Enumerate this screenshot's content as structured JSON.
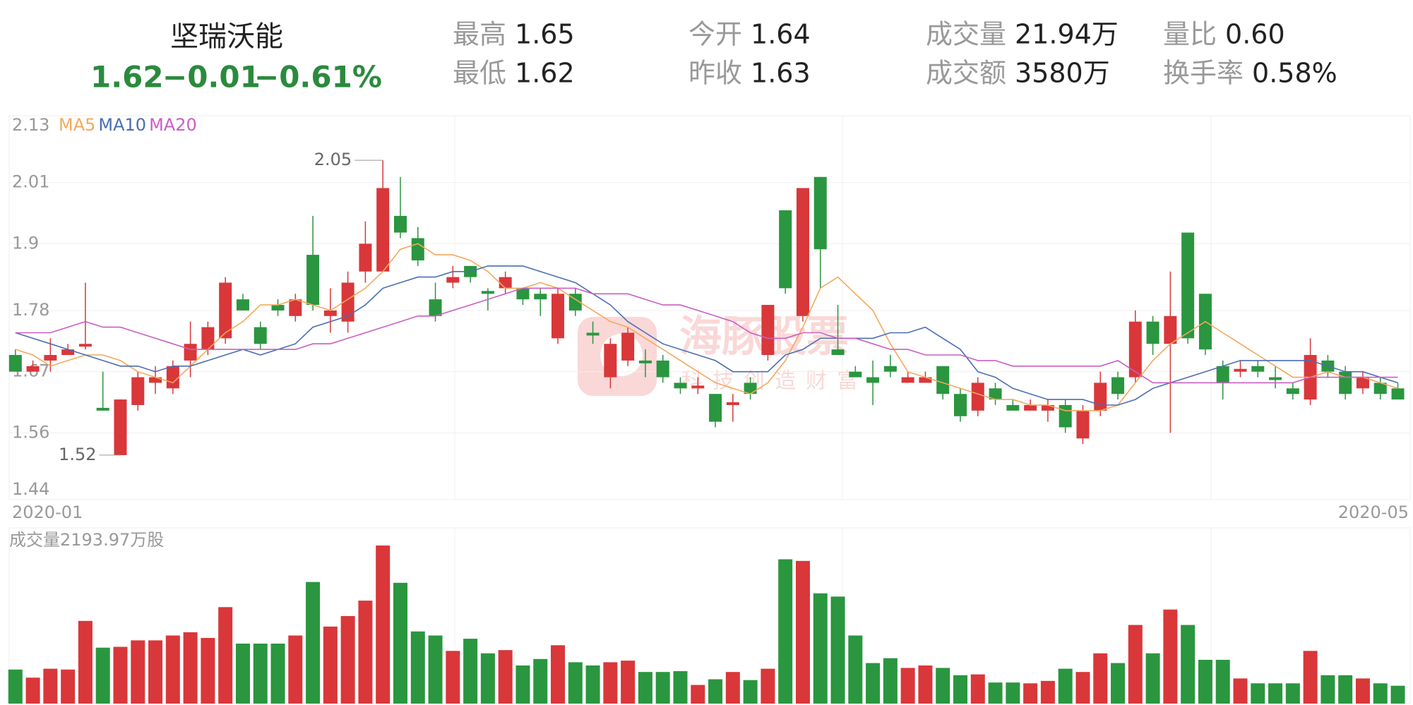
{
  "header": {
    "name": "坚瑞沃能",
    "price": "1.62",
    "change": "−0.01",
    "change_pct": "−0.61%",
    "stats": [
      {
        "label": "最高",
        "value": "1.65"
      },
      {
        "label": "最低",
        "value": "1.62"
      },
      {
        "label": "今开",
        "value": "1.64"
      },
      {
        "label": "昨收",
        "value": "1.63"
      },
      {
        "label": "成交量",
        "value": "21.94万"
      },
      {
        "label": "成交额",
        "value": "3580万"
      },
      {
        "label": "量比",
        "value": "0.60"
      },
      {
        "label": "换手率",
        "value": "0.58%"
      }
    ]
  },
  "watermark": {
    "title": "海豚股票",
    "slogan": "科技创造财富"
  },
  "chart_data": {
    "type": "candlestick",
    "categories": [
      "2020-01",
      null,
      null,
      null,
      null,
      null,
      null,
      null,
      null,
      null,
      null,
      null,
      null,
      null,
      null,
      null,
      null,
      null,
      null,
      null,
      null,
      null,
      null,
      null,
      null,
      null,
      null,
      null,
      null,
      null,
      null,
      null,
      null,
      null,
      null,
      null,
      null,
      null,
      null,
      null,
      null,
      null,
      null,
      null,
      null,
      null,
      null,
      null,
      null,
      null,
      null,
      null,
      null,
      null,
      null,
      null,
      null,
      null,
      null,
      null,
      null,
      null,
      null,
      null,
      null,
      null,
      null,
      null,
      null,
      null,
      null,
      null,
      null,
      null,
      null,
      null,
      null,
      null,
      null,
      "2020-05"
    ],
    "open": [
      1.7,
      1.67,
      1.69,
      1.7,
      1.715,
      1.605,
      1.52,
      1.61,
      1.65,
      1.64,
      1.69,
      1.71,
      1.73,
      1.8,
      1.75,
      1.79,
      1.77,
      1.88,
      1.77,
      1.76,
      1.85,
      1.85,
      1.95,
      1.91,
      1.8,
      1.83,
      1.86,
      1.815,
      1.82,
      1.82,
      1.81,
      1.73,
      1.81,
      1.74,
      1.66,
      1.69,
      1.69,
      1.69,
      1.65,
      1.64,
      1.63,
      1.61,
      1.65,
      1.7,
      1.96,
      1.77,
      2.02,
      1.71,
      1.67,
      1.66,
      1.68,
      1.65,
      1.65,
      1.68,
      1.63,
      1.6,
      1.64,
      1.61,
      1.6,
      1.6,
      1.61,
      1.55,
      1.6,
      1.66,
      1.66,
      1.76,
      1.72,
      1.92,
      1.81,
      1.68,
      1.67,
      1.68,
      1.66,
      1.64,
      1.62,
      1.69,
      1.67,
      1.64,
      1.65,
      1.64
    ],
    "high": [
      1.71,
      1.69,
      1.73,
      1.72,
      1.83,
      1.67,
      1.62,
      1.67,
      1.68,
      1.69,
      1.76,
      1.76,
      1.84,
      1.81,
      1.76,
      1.8,
      1.81,
      1.95,
      1.82,
      1.85,
      1.94,
      2.05,
      2.02,
      1.93,
      1.83,
      1.86,
      1.86,
      1.82,
      1.85,
      1.82,
      1.82,
      1.82,
      1.82,
      1.76,
      1.73,
      1.75,
      1.71,
      1.7,
      1.66,
      1.66,
      1.63,
      1.63,
      1.66,
      1.79,
      1.96,
      2.0,
      2.02,
      1.79,
      1.68,
      1.69,
      1.7,
      1.67,
      1.67,
      1.68,
      1.64,
      1.66,
      1.65,
      1.62,
      1.62,
      1.62,
      1.62,
      1.61,
      1.67,
      1.67,
      1.78,
      1.77,
      1.85,
      1.92,
      1.81,
      1.69,
      1.69,
      1.69,
      1.68,
      1.65,
      1.73,
      1.7,
      1.68,
      1.67,
      1.66,
      1.65
    ],
    "low": [
      1.67,
      1.67,
      1.67,
      1.7,
      1.71,
      1.6,
      1.52,
      1.6,
      1.63,
      1.63,
      1.66,
      1.7,
      1.72,
      1.78,
      1.71,
      1.77,
      1.76,
      1.78,
      1.74,
      1.74,
      1.83,
      1.85,
      1.91,
      1.86,
      1.76,
      1.82,
      1.83,
      1.78,
      1.81,
      1.79,
      1.77,
      1.72,
      1.77,
      1.72,
      1.64,
      1.68,
      1.66,
      1.65,
      1.63,
      1.63,
      1.57,
      1.58,
      1.62,
      1.69,
      1.81,
      1.76,
      1.82,
      1.7,
      1.66,
      1.61,
      1.66,
      1.65,
      1.65,
      1.62,
      1.58,
      1.59,
      1.61,
      1.6,
      1.6,
      1.58,
      1.56,
      1.54,
      1.59,
      1.62,
      1.65,
      1.7,
      1.56,
      1.72,
      1.7,
      1.62,
      1.66,
      1.66,
      1.64,
      1.62,
      1.61,
      1.66,
      1.62,
      1.63,
      1.62,
      1.62
    ],
    "close": [
      1.67,
      1.68,
      1.7,
      1.71,
      1.72,
      1.6,
      1.62,
      1.66,
      1.66,
      1.68,
      1.72,
      1.75,
      1.83,
      1.78,
      1.72,
      1.78,
      1.8,
      1.79,
      1.78,
      1.83,
      1.9,
      2.0,
      1.92,
      1.87,
      1.77,
      1.84,
      1.84,
      1.81,
      1.84,
      1.8,
      1.8,
      1.81,
      1.78,
      1.735,
      1.72,
      1.74,
      1.685,
      1.66,
      1.64,
      1.645,
      1.58,
      1.615,
      1.63,
      1.79,
      1.82,
      2.0,
      1.89,
      1.7,
      1.66,
      1.65,
      1.67,
      1.66,
      1.66,
      1.63,
      1.59,
      1.65,
      1.62,
      1.6,
      1.61,
      1.61,
      1.57,
      1.6,
      1.65,
      1.63,
      1.76,
      1.72,
      1.77,
      1.73,
      1.71,
      1.65,
      1.675,
      1.67,
      1.655,
      1.63,
      1.7,
      1.67,
      1.63,
      1.66,
      1.63,
      1.62
    ],
    "up_color": "#d9373a",
    "down_color": "#2a963f",
    "ylim": [
      1.44,
      2.13
    ],
    "yticks": [
      2.13,
      2.01,
      1.9,
      1.78,
      1.67,
      1.56,
      1.44
    ],
    "grid": true,
    "high_label": 2.05,
    "low_label": 1.52,
    "series": [
      {
        "name": "MA5",
        "color": "#f4a85c",
        "values": [
          1.71,
          1.7,
          1.68,
          1.69,
          1.7,
          1.7,
          1.69,
          1.67,
          1.66,
          1.65,
          1.68,
          1.71,
          1.74,
          1.76,
          1.79,
          1.79,
          1.8,
          1.79,
          1.78,
          1.8,
          1.82,
          1.85,
          1.89,
          1.9,
          1.88,
          1.88,
          1.87,
          1.85,
          1.82,
          1.82,
          1.83,
          1.82,
          1.8,
          1.78,
          1.76,
          1.75,
          1.73,
          1.71,
          1.69,
          1.67,
          1.65,
          1.64,
          1.63,
          1.65,
          1.69,
          1.75,
          1.82,
          1.84,
          1.81,
          1.78,
          1.72,
          1.67,
          1.66,
          1.65,
          1.64,
          1.63,
          1.62,
          1.62,
          1.61,
          1.61,
          1.6,
          1.6,
          1.6,
          1.61,
          1.65,
          1.69,
          1.72,
          1.74,
          1.76,
          1.74,
          1.72,
          1.7,
          1.68,
          1.66,
          1.66,
          1.67,
          1.66,
          1.66,
          1.65,
          1.64
        ]
      },
      {
        "name": "MA10",
        "color": "#4a6db3",
        "values": [
          1.74,
          1.73,
          1.72,
          1.71,
          1.7,
          1.69,
          1.68,
          1.68,
          1.67,
          1.68,
          1.68,
          1.69,
          1.7,
          1.71,
          1.7,
          1.71,
          1.72,
          1.75,
          1.76,
          1.77,
          1.79,
          1.82,
          1.83,
          1.84,
          1.84,
          1.85,
          1.85,
          1.86,
          1.86,
          1.86,
          1.85,
          1.84,
          1.83,
          1.81,
          1.79,
          1.76,
          1.74,
          1.72,
          1.71,
          1.7,
          1.69,
          1.67,
          1.67,
          1.67,
          1.7,
          1.71,
          1.73,
          1.73,
          1.73,
          1.73,
          1.74,
          1.74,
          1.75,
          1.73,
          1.71,
          1.67,
          1.66,
          1.64,
          1.63,
          1.62,
          1.62,
          1.62,
          1.61,
          1.61,
          1.62,
          1.64,
          1.65,
          1.66,
          1.67,
          1.68,
          1.69,
          1.69,
          1.69,
          1.69,
          1.69,
          1.68,
          1.67,
          1.67,
          1.66,
          1.65
        ]
      },
      {
        "name": "MA20",
        "color": "#c95ec4",
        "values": [
          1.74,
          1.74,
          1.74,
          1.75,
          1.76,
          1.75,
          1.75,
          1.74,
          1.73,
          1.72,
          1.71,
          1.71,
          1.71,
          1.71,
          1.71,
          1.71,
          1.71,
          1.72,
          1.72,
          1.73,
          1.74,
          1.75,
          1.76,
          1.77,
          1.77,
          1.78,
          1.79,
          1.8,
          1.81,
          1.82,
          1.82,
          1.82,
          1.82,
          1.81,
          1.81,
          1.81,
          1.8,
          1.79,
          1.79,
          1.78,
          1.77,
          1.76,
          1.74,
          1.73,
          1.73,
          1.74,
          1.74,
          1.73,
          1.73,
          1.72,
          1.71,
          1.71,
          1.7,
          1.7,
          1.7,
          1.69,
          1.69,
          1.68,
          1.68,
          1.68,
          1.68,
          1.68,
          1.68,
          1.69,
          1.67,
          1.65,
          1.65,
          1.65,
          1.65,
          1.65,
          1.65,
          1.65,
          1.65,
          1.65,
          1.66,
          1.66,
          1.66,
          1.66,
          1.66,
          1.66
        ]
      }
    ],
    "volume": {
      "label": "成交量2193.97万股",
      "values": [
        42,
        32,
        43,
        42,
        102,
        69,
        70,
        78,
        78,
        84,
        88,
        81,
        119,
        74,
        74,
        74,
        84,
        150,
        95,
        108,
        127,
        195,
        149,
        89,
        84,
        65,
        80,
        62,
        66,
        47,
        55,
        72,
        51,
        47,
        51,
        53,
        39,
        39,
        40,
        23,
        30,
        39,
        29,
        43,
        178,
        176,
        136,
        132,
        84,
        50,
        56,
        44,
        47,
        44,
        35,
        36,
        26,
        26,
        25,
        28,
        43,
        39,
        62,
        50,
        97,
        62,
        116,
        97,
        54,
        54,
        31,
        25,
        25,
        25,
        65,
        35,
        35,
        31,
        25,
        22
      ]
    }
  }
}
